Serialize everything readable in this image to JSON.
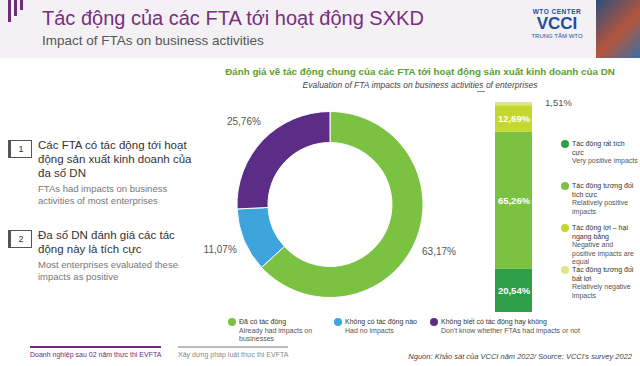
{
  "header": {
    "title": "Tác động của các FTA tới hoạt động SXKD",
    "subtitle": "Impact of FTAs on business activities",
    "logo": [
      "WTO CENTER",
      "VCCI",
      "TRUNG TÂM WTO"
    ]
  },
  "section": {
    "title": "Đánh giá về tác động chung của các FTA tới hoạt động sản xuất kinh doanh của DN",
    "subtitle": "Evaluation of FTA impacts on business activities of enterprises"
  },
  "findings": [
    {
      "number": "1",
      "text": "Các FTA có tác động tới hoạt động sản xuất kinh doanh của đa số DN",
      "text_en": "FTAs had impacts on business activities of most enterprises"
    },
    {
      "number": "2",
      "text": "Đa số DN đánh giá các tác động này là tích cực",
      "text_en": "Most enterprises evaluated these impacts as positive"
    }
  ],
  "chart_data": [
    {
      "type": "donut",
      "categories": [
        "Đã có tác động",
        "Không có tác động nào",
        "Không biết có tác động hay không"
      ],
      "categories_en": [
        "Already had impacts on businesses",
        "Had no impacts",
        "Don't know whether FTAs had impacts or not"
      ],
      "values": [
        63.17,
        11.07,
        25.76
      ],
      "value_labels": [
        "63,17%",
        "11,07%",
        "25,76%"
      ],
      "colors": [
        "#7cc242",
        "#3ea4dc",
        "#5c2d86"
      ],
      "data_labels": true,
      "legend": "bottom"
    },
    {
      "type": "bar",
      "stacked": true,
      "categories": [
        null
      ],
      "series": [
        {
          "name": "Tác động rất tích cực",
          "name_en": "Very positive impacts",
          "color": "#2e9e47",
          "values": [
            20.54
          ],
          "value_labels": [
            "20,54%"
          ]
        },
        {
          "name": "Tác động tương đối tích cực",
          "name_en": "Relatively positive impacts",
          "color": "#7cc242",
          "values": [
            65.26
          ],
          "value_labels": [
            "65,26%"
          ]
        },
        {
          "name": "Tác động lợi – hại ngang bằng",
          "name_en": "Negative and positive impacts are equal",
          "color": "#c4d82e",
          "values": [
            12.69
          ],
          "value_labels": [
            "12,69%"
          ]
        },
        {
          "name": "Tác động tương đối bất lợi",
          "name_en": "Relatively negative impacts",
          "color": "#dfe68a",
          "values": [
            1.51
          ],
          "value_labels": [
            "1,51%"
          ]
        }
      ],
      "ylim": [
        0,
        100
      ],
      "tick_labels": false,
      "data_labels": true,
      "legend": "right"
    }
  ],
  "footer": {
    "tabs": [
      "Doanh nghiệp sau 02 năm thực thi EVFTA",
      "Xây dựng pháp luật thực thi EVFTA"
    ],
    "source": "Nguồn: Khảo sát của VCCI năm 2022/ Source: VCCI's survey 2022"
  }
}
